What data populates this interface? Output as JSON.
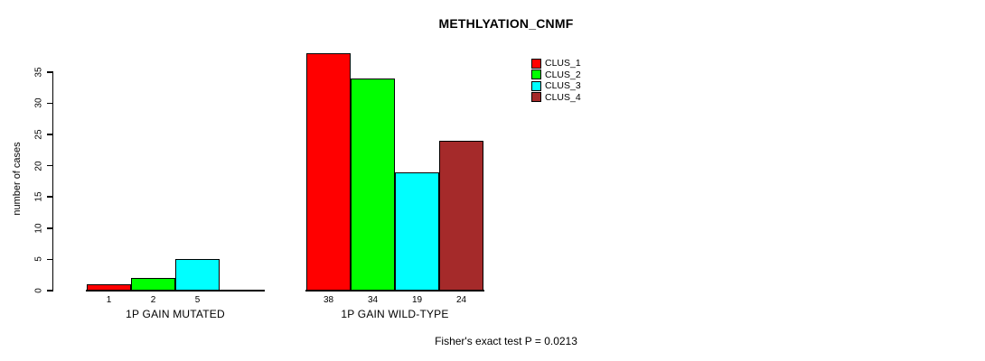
{
  "chart_data": {
    "type": "bar",
    "title": "METHLYATION_CNMF",
    "ylabel": "number of cases",
    "xlabel": "",
    "ylim": [
      0,
      38
    ],
    "yticks": [
      0,
      5,
      10,
      15,
      20,
      25,
      30,
      35
    ],
    "grid": false,
    "legend_position": "top-right",
    "groups": [
      "1P GAIN MUTATED",
      "1P GAIN WILD-TYPE"
    ],
    "series": [
      {
        "name": "CLUS_1",
        "color": "#FF0000",
        "values": [
          1,
          38
        ]
      },
      {
        "name": "CLUS_2",
        "color": "#00FF00",
        "values": [
          2,
          34
        ]
      },
      {
        "name": "CLUS_3",
        "color": "#00FFFF",
        "values": [
          5,
          19
        ]
      },
      {
        "name": "CLUS_4",
        "color": "#A52A2A",
        "values": [
          0,
          24
        ]
      }
    ],
    "bar_value_labels_shown": true,
    "zero_bars_hidden": true,
    "annotation": "Fisher's exact test P = 0.0213"
  },
  "colors": {
    "background": "#FFFFFF",
    "axis": "#000000",
    "text": "#000000"
  }
}
